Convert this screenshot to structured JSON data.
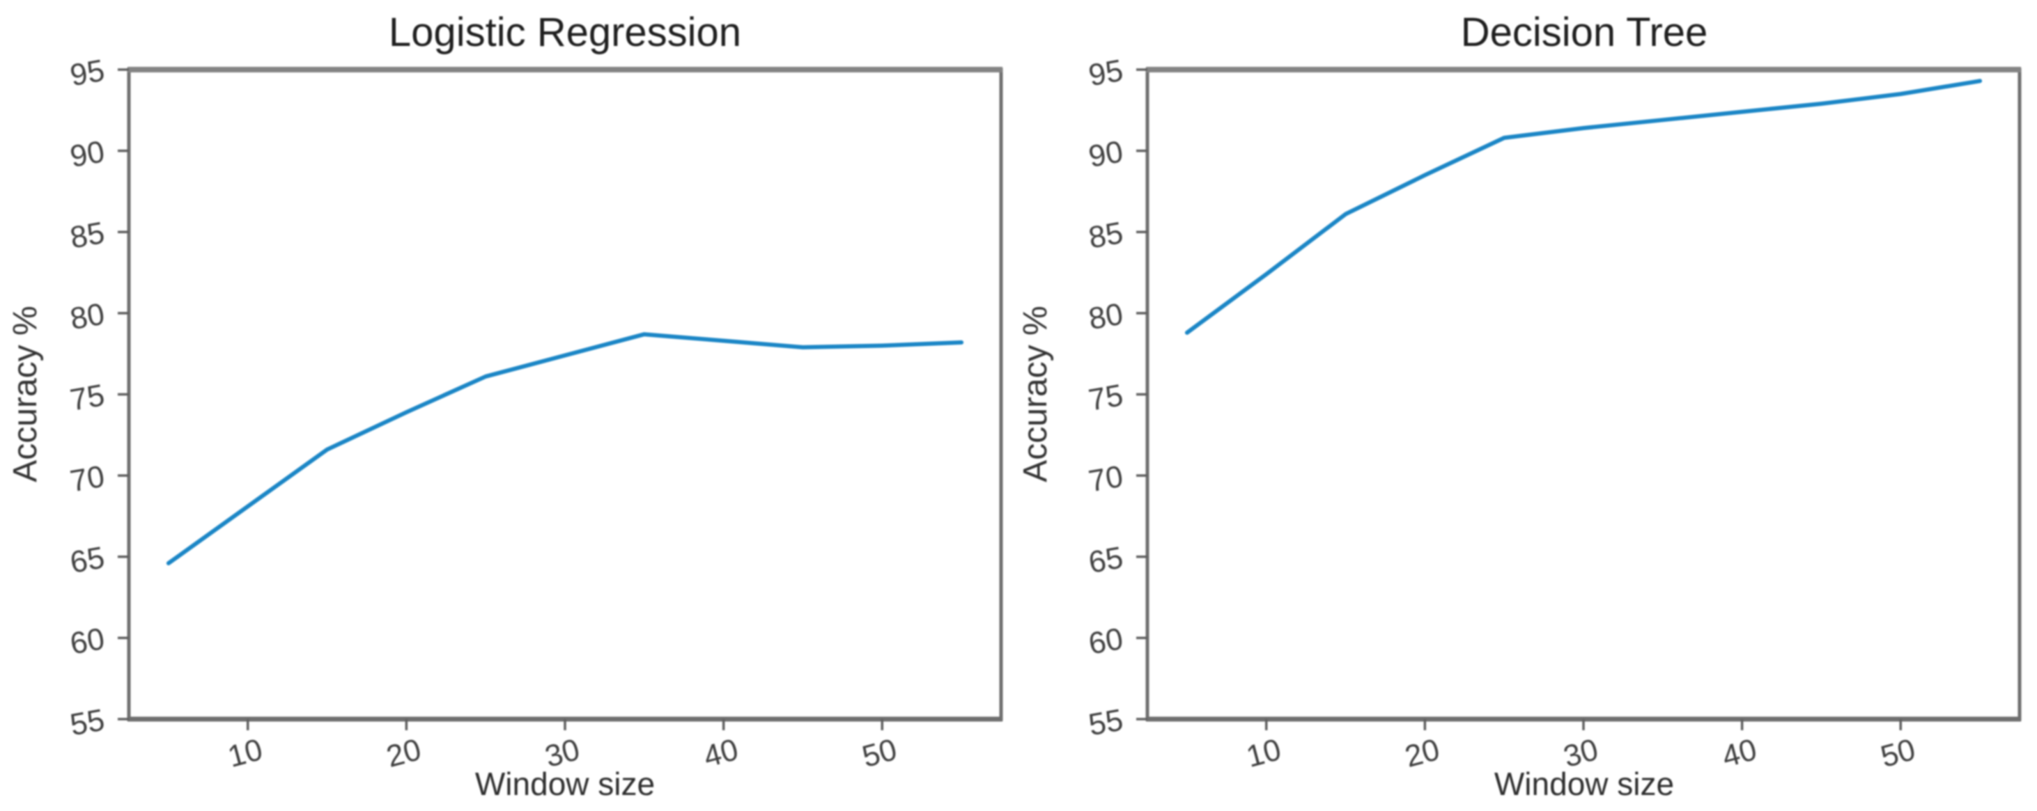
{
  "figure": {
    "background": "#ffffff",
    "line_color": "#1b86c6",
    "spine_color": "#6f6f6f",
    "spine_top_color": "#848484",
    "tick_color": "#5f5f5f",
    "tick_label_color": "#3f3f3f",
    "title_color": "#1f1f1f",
    "axis_label_color": "#2e2e2e"
  },
  "chart_data": [
    {
      "type": "line",
      "title": "Logistic Regression",
      "xlabel": "Window size",
      "ylabel": "Accuracy %",
      "x": [
        5,
        10,
        15,
        20,
        25,
        30,
        35,
        40,
        45,
        50,
        55
      ],
      "values": [
        64.6,
        68.1,
        71.6,
        73.9,
        76.1,
        77.4,
        78.7,
        78.3,
        77.9,
        78.0,
        78.2
      ],
      "xlim": [
        2.5,
        57.5
      ],
      "ylim": [
        55,
        95
      ],
      "xticks": [
        10,
        20,
        30,
        40,
        50
      ],
      "yticks": [
        55,
        60,
        65,
        70,
        75,
        80,
        85,
        90,
        95
      ],
      "grid": false
    },
    {
      "type": "line",
      "title": "Decision Tree",
      "xlabel": "Window size",
      "ylabel": "Accuracy %",
      "x": [
        5,
        10,
        15,
        20,
        25,
        30,
        35,
        40,
        45,
        50,
        55
      ],
      "values": [
        78.8,
        82.4,
        86.1,
        88.5,
        90.8,
        91.4,
        91.9,
        92.4,
        92.9,
        93.5,
        94.3
      ],
      "xlim": [
        2.5,
        57.5
      ],
      "ylim": [
        55,
        95
      ],
      "xticks": [
        10,
        20,
        30,
        40,
        50
      ],
      "yticks": [
        55,
        60,
        65,
        70,
        75,
        80,
        85,
        90,
        95
      ],
      "grid": false
    }
  ]
}
